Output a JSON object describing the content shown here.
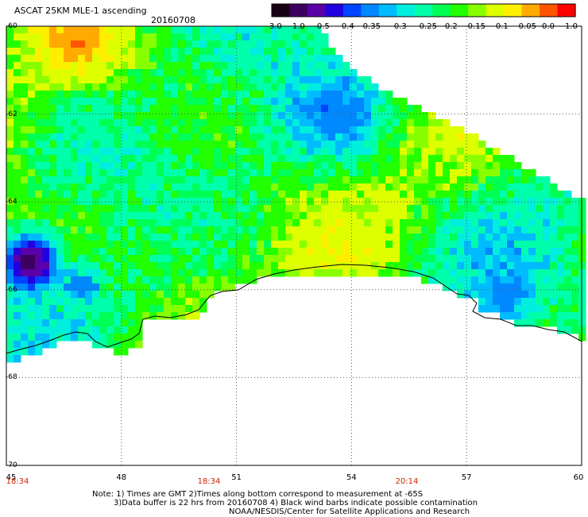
{
  "header": {
    "title": "ASCAT 25KM MLE-1 ascending",
    "date": "20160708"
  },
  "colorbar": {
    "ticks": [
      "-3.0",
      "-1.0",
      "-0.5",
      "-0.4",
      "-0.35",
      "-0.3",
      "-0.25",
      "-0.2",
      "-0.15",
      "-0.1",
      "-0.05",
      "0.0",
      "1.0"
    ],
    "colors": [
      "#1a0014",
      "#3c0060",
      "#5a00a8",
      "#2200e0",
      "#0044ff",
      "#0088ff",
      "#00bbff",
      "#00eedd",
      "#00ffaa",
      "#00ff55",
      "#22ff00",
      "#88ff00",
      "#ddff00",
      "#ffee00",
      "#ffaa00",
      "#ff5500",
      "#ff0000"
    ]
  },
  "axes": {
    "lat_labels": [
      "-60",
      "-62",
      "-64",
      "-66",
      "-68",
      "-70"
    ],
    "lon_labels": [
      "45",
      "48",
      "51",
      "54",
      "57",
      "60"
    ],
    "time_labels": [
      "18:34",
      "18:34",
      "20:14"
    ]
  },
  "map_colors": {
    "land": "#ffffff",
    "coastline": "#000000",
    "grid": "#555555"
  },
  "footer": {
    "line1": "Note: 1) Times are GMT 2)Times along bottom correspond to measurement at -65S",
    "line2": "3)Data buffer is 22 hrs from 20160708 4) Black wind barbs indicate possible contamination",
    "line3": "NOAA/NESDIS/Center for Satellite Applications and Research"
  }
}
